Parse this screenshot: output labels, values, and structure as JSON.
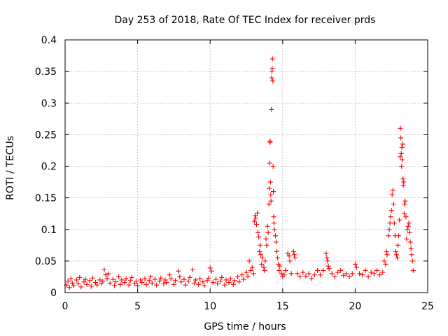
{
  "chart_data": {
    "type": "scatter",
    "title": "Day 253 of 2018, Rate Of TEC Index for receiver prds",
    "xlabel": "GPS time / hours",
    "ylabel": "ROTI / TECUs",
    "xlim": [
      0,
      25
    ],
    "ylim": [
      0,
      0.4
    ],
    "xticks": [
      0,
      5,
      10,
      15,
      20,
      25
    ],
    "xtick_labels": [
      "0",
      "5",
      "10",
      "15",
      "20",
      "25"
    ],
    "yticks": [
      0,
      0.05,
      0.1,
      0.15,
      0.2,
      0.25,
      0.3,
      0.35,
      0.4
    ],
    "ytick_labels": [
      "0",
      "0.05",
      "0.1",
      "0.15",
      "0.2",
      "0.25",
      "0.3",
      "0.35",
      "0.4"
    ],
    "grid": true,
    "marker": "+",
    "series": [
      {
        "name": "ROTI",
        "color": "#ff0000",
        "points": [
          [
            0.1,
            0.012
          ],
          [
            0.2,
            0.018
          ],
          [
            0.3,
            0.008
          ],
          [
            0.4,
            0.022
          ],
          [
            0.5,
            0.015
          ],
          [
            0.6,
            0.011
          ],
          [
            0.8,
            0.02
          ],
          [
            0.9,
            0.014
          ],
          [
            1.0,
            0.024
          ],
          [
            1.1,
            0.009
          ],
          [
            1.3,
            0.017
          ],
          [
            1.4,
            0.021
          ],
          [
            1.5,
            0.013
          ],
          [
            1.7,
            0.019
          ],
          [
            1.8,
            0.01
          ],
          [
            1.9,
            0.023
          ],
          [
            2.1,
            0.016
          ],
          [
            2.2,
            0.012
          ],
          [
            2.4,
            0.02
          ],
          [
            2.5,
            0.014
          ],
          [
            2.6,
            0.018
          ],
          [
            2.7,
            0.036
          ],
          [
            2.8,
            0.028
          ],
          [
            2.9,
            0.022
          ],
          [
            3.0,
            0.03
          ],
          [
            3.1,
            0.015
          ],
          [
            3.3,
            0.021
          ],
          [
            3.4,
            0.011
          ],
          [
            3.5,
            0.017
          ],
          [
            3.7,
            0.025
          ],
          [
            3.8,
            0.013
          ],
          [
            3.9,
            0.02
          ],
          [
            4.1,
            0.016
          ],
          [
            4.2,
            0.022
          ],
          [
            4.4,
            0.012
          ],
          [
            4.5,
            0.019
          ],
          [
            4.6,
            0.024
          ],
          [
            4.8,
            0.014
          ],
          [
            4.9,
            0.018
          ],
          [
            5.0,
            0.011
          ],
          [
            5.2,
            0.02
          ],
          [
            5.3,
            0.016
          ],
          [
            5.5,
            0.022
          ],
          [
            5.6,
            0.013
          ],
          [
            5.8,
            0.019
          ],
          [
            5.9,
            0.025
          ],
          [
            6.0,
            0.015
          ],
          [
            6.2,
            0.021
          ],
          [
            6.3,
            0.012
          ],
          [
            6.5,
            0.018
          ],
          [
            6.6,
            0.023
          ],
          [
            6.8,
            0.014
          ],
          [
            6.9,
            0.02
          ],
          [
            7.0,
            0.016
          ],
          [
            7.2,
            0.028
          ],
          [
            7.3,
            0.022
          ],
          [
            7.5,
            0.013
          ],
          [
            7.6,
            0.019
          ],
          [
            7.8,
            0.034
          ],
          [
            7.9,
            0.025
          ],
          [
            8.0,
            0.017
          ],
          [
            8.2,
            0.021
          ],
          [
            8.3,
            0.012
          ],
          [
            8.5,
            0.018
          ],
          [
            8.6,
            0.024
          ],
          [
            8.8,
            0.036
          ],
          [
            8.9,
            0.015
          ],
          [
            9.0,
            0.02
          ],
          [
            9.2,
            0.013
          ],
          [
            9.3,
            0.022
          ],
          [
            9.5,
            0.017
          ],
          [
            9.6,
            0.011
          ],
          [
            9.8,
            0.019
          ],
          [
            9.9,
            0.023
          ],
          [
            10.0,
            0.039
          ],
          [
            10.1,
            0.034
          ],
          [
            10.2,
            0.016
          ],
          [
            10.4,
            0.021
          ],
          [
            10.5,
            0.014
          ],
          [
            10.7,
            0.018
          ],
          [
            10.8,
            0.024
          ],
          [
            11.0,
            0.012
          ],
          [
            11.1,
            0.02
          ],
          [
            11.3,
            0.016
          ],
          [
            11.4,
            0.022
          ],
          [
            11.6,
            0.013
          ],
          [
            11.7,
            0.019
          ],
          [
            11.9,
            0.025
          ],
          [
            12.0,
            0.017
          ],
          [
            12.2,
            0.028
          ],
          [
            12.3,
            0.021
          ],
          [
            12.5,
            0.032
          ],
          [
            12.6,
            0.026
          ],
          [
            12.7,
            0.05
          ],
          [
            12.8,
            0.035
          ],
          [
            12.9,
            0.04
          ],
          [
            13.0,
            0.03
          ],
          [
            13.05,
            0.113
          ],
          [
            13.1,
            0.122
          ],
          [
            13.15,
            0.118
          ],
          [
            13.2,
            0.108
          ],
          [
            13.25,
            0.126
          ],
          [
            13.3,
            0.095
          ],
          [
            13.35,
            0.088
          ],
          [
            13.4,
            0.065
          ],
          [
            13.45,
            0.075
          ],
          [
            13.5,
            0.06
          ],
          [
            13.55,
            0.045
          ],
          [
            13.6,
            0.055
          ],
          [
            13.7,
            0.04
          ],
          [
            13.75,
            0.035
          ],
          [
            13.8,
            0.05
          ],
          [
            13.85,
            0.085
          ],
          [
            13.9,
            0.075
          ],
          [
            13.95,
            0.105
          ],
          [
            14.0,
            0.095
          ],
          [
            14.05,
            0.14
          ],
          [
            14.07,
            0.165
          ],
          [
            14.1,
            0.205
          ],
          [
            14.12,
            0.24
          ],
          [
            14.14,
            0.238
          ],
          [
            14.16,
            0.175
          ],
          [
            14.18,
            0.155
          ],
          [
            14.2,
            0.145
          ],
          [
            14.22,
            0.29
          ],
          [
            14.24,
            0.34
          ],
          [
            14.26,
            0.35
          ],
          [
            14.28,
            0.355
          ],
          [
            14.3,
            0.37
          ],
          [
            14.32,
            0.335
          ],
          [
            14.34,
            0.2
          ],
          [
            14.36,
            0.16
          ],
          [
            14.38,
            0.12
          ],
          [
            14.4,
            0.11
          ],
          [
            14.45,
            0.1
          ],
          [
            14.5,
            0.09
          ],
          [
            14.55,
            0.08
          ],
          [
            14.6,
            0.065
          ],
          [
            14.65,
            0.055
          ],
          [
            14.7,
            0.045
          ],
          [
            14.75,
            0.035
          ],
          [
            14.8,
            0.042
          ],
          [
            14.9,
            0.03
          ],
          [
            15.0,
            0.025
          ],
          [
            15.1,
            0.028
          ],
          [
            15.2,
            0.035
          ],
          [
            15.35,
            0.062
          ],
          [
            15.45,
            0.058
          ],
          [
            15.5,
            0.05
          ],
          [
            15.6,
            0.03
          ],
          [
            15.75,
            0.065
          ],
          [
            15.8,
            0.06
          ],
          [
            15.85,
            0.055
          ],
          [
            16.0,
            0.03
          ],
          [
            16.2,
            0.025
          ],
          [
            16.4,
            0.032
          ],
          [
            16.6,
            0.026
          ],
          [
            16.8,
            0.03
          ],
          [
            17.0,
            0.022
          ],
          [
            17.2,
            0.028
          ],
          [
            17.4,
            0.035
          ],
          [
            17.6,
            0.028
          ],
          [
            17.8,
            0.035
          ],
          [
            18.0,
            0.062
          ],
          [
            18.05,
            0.055
          ],
          [
            18.1,
            0.05
          ],
          [
            18.15,
            0.042
          ],
          [
            18.2,
            0.038
          ],
          [
            18.4,
            0.03
          ],
          [
            18.6,
            0.025
          ],
          [
            18.8,
            0.032
          ],
          [
            19.0,
            0.035
          ],
          [
            19.2,
            0.027
          ],
          [
            19.4,
            0.03
          ],
          [
            19.6,
            0.025
          ],
          [
            19.8,
            0.03
          ],
          [
            20.0,
            0.045
          ],
          [
            20.1,
            0.04
          ],
          [
            20.3,
            0.03
          ],
          [
            20.5,
            0.028
          ],
          [
            20.7,
            0.035
          ],
          [
            20.9,
            0.025
          ],
          [
            21.1,
            0.032
          ],
          [
            21.3,
            0.03
          ],
          [
            21.5,
            0.035
          ],
          [
            21.7,
            0.028
          ],
          [
            21.9,
            0.032
          ],
          [
            22.0,
            0.05
          ],
          [
            22.1,
            0.045
          ],
          [
            22.15,
            0.065
          ],
          [
            22.2,
            0.06
          ],
          [
            22.3,
            0.09
          ],
          [
            22.35,
            0.1
          ],
          [
            22.4,
            0.11
          ],
          [
            22.45,
            0.12
          ],
          [
            22.5,
            0.13
          ],
          [
            22.55,
            0.155
          ],
          [
            22.6,
            0.162
          ],
          [
            22.65,
            0.14
          ],
          [
            22.7,
            0.11
          ],
          [
            22.75,
            0.09
          ],
          [
            22.8,
            0.065
          ],
          [
            22.85,
            0.06
          ],
          [
            22.9,
            0.055
          ],
          [
            22.95,
            0.075
          ],
          [
            23.0,
            0.09
          ],
          [
            23.05,
            0.115
          ],
          [
            23.1,
            0.215
          ],
          [
            23.12,
            0.26
          ],
          [
            23.15,
            0.245
          ],
          [
            23.18,
            0.22
          ],
          [
            23.2,
            0.2
          ],
          [
            23.22,
            0.23
          ],
          [
            23.25,
            0.21
          ],
          [
            23.28,
            0.235
          ],
          [
            23.3,
            0.18
          ],
          [
            23.32,
            0.17
          ],
          [
            23.35,
            0.175
          ],
          [
            23.38,
            0.125
          ],
          [
            23.4,
            0.14
          ],
          [
            23.45,
            0.145
          ],
          [
            23.5,
            0.12
          ],
          [
            23.55,
            0.085
          ],
          [
            23.6,
            0.1
          ],
          [
            23.65,
            0.105
          ],
          [
            23.7,
            0.11
          ],
          [
            23.75,
            0.095
          ],
          [
            23.8,
            0.08
          ],
          [
            23.85,
            0.07
          ],
          [
            23.9,
            0.06
          ],
          [
            23.95,
            0.05
          ],
          [
            24.0,
            0.035
          ]
        ]
      }
    ]
  }
}
